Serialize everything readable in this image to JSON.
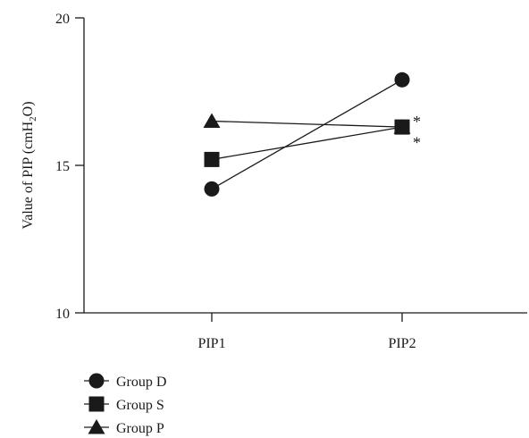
{
  "chart_data": {
    "type": "line",
    "categories": [
      "PIP1",
      "PIP2"
    ],
    "ylabel_main": "Value of PIP (cmH",
    "ylabel_sub": "2",
    "ylabel_end": "O)",
    "ylim": [
      10,
      20
    ],
    "yticks": [
      "10",
      "15",
      "20"
    ],
    "grid": false,
    "legend_position": "bottom-left",
    "series": [
      {
        "name": "Group D",
        "marker": "circle",
        "values": [
          14.2,
          17.9
        ]
      },
      {
        "name": "Group S",
        "marker": "square",
        "values": [
          15.2,
          16.3
        ]
      },
      {
        "name": "Group P",
        "marker": "triangle",
        "values": [
          16.5,
          16.3
        ]
      }
    ],
    "annotations": [
      {
        "text": "*",
        "category": "PIP2",
        "value": 16.6
      },
      {
        "text": "*",
        "category": "PIP2",
        "value": 15.9
      }
    ],
    "colors": {
      "series": "#1a1a1a",
      "axis": "#1a1a1a"
    }
  }
}
